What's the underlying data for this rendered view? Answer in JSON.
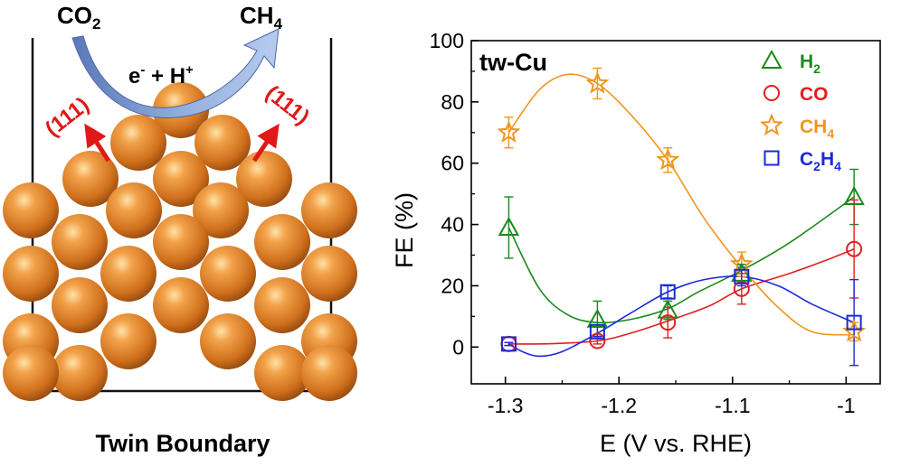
{
  "schematic": {
    "title": "Twin Boundary",
    "reactant": "CO2",
    "product": "CH4",
    "reagents": "e- + H+",
    "facet_left": "(111)",
    "facet_right": "(111)"
  },
  "chart_data": {
    "type": "scatter",
    "title": "tw-Cu",
    "xlabel": "E (V vs. RHE)",
    "ylabel": "FE (%)",
    "xlim": [
      -1.33,
      -0.97
    ],
    "ylim": [
      -12,
      100
    ],
    "xticks": [
      -1.3,
      -1.2,
      -1.1,
      -1.0
    ],
    "xtick_labels": [
      "-1.3",
      "-1.2",
      "-1.1",
      "-1"
    ],
    "yticks": [
      0,
      20,
      40,
      60,
      80,
      100
    ],
    "ytick_labels": [
      "0",
      "20",
      "40",
      "60",
      "80",
      "100"
    ],
    "grid": false,
    "legend_position": "top-right",
    "x": [
      -1.297,
      -1.219,
      -1.157,
      -1.092,
      -0.993
    ],
    "series": [
      {
        "name": "H2",
        "marker": "triangle",
        "color": "#1a8a1a",
        "values": [
          39,
          9,
          12,
          24,
          49
        ],
        "errors": [
          10,
          6,
          3,
          3,
          9
        ],
        "curve": [
          [
            -1.297,
            39
          ],
          [
            -1.27,
            19
          ],
          [
            -1.245,
            10.5
          ],
          [
            -1.219,
            8
          ],
          [
            -1.19,
            9
          ],
          [
            -1.157,
            12.5
          ],
          [
            -1.13,
            18
          ],
          [
            -1.092,
            25
          ],
          [
            -1.05,
            34
          ],
          [
            -0.993,
            49
          ]
        ]
      },
      {
        "name": "CO",
        "marker": "circle",
        "color": "#e02020",
        "values": [
          1,
          2,
          8,
          19,
          32
        ],
        "errors": [
          0.5,
          1,
          5,
          5,
          16
        ],
        "curve": [
          [
            -1.297,
            1
          ],
          [
            -1.26,
            1.1
          ],
          [
            -1.219,
            2
          ],
          [
            -1.19,
            4.5
          ],
          [
            -1.157,
            8.5
          ],
          [
            -1.12,
            13.5
          ],
          [
            -1.092,
            19
          ],
          [
            -1.05,
            24
          ],
          [
            -1.02,
            28
          ],
          [
            -0.993,
            32
          ]
        ]
      },
      {
        "name": "CH4",
        "marker": "star",
        "color": "#f0961e",
        "values": [
          70,
          86,
          61,
          27,
          5
        ],
        "errors": [
          5,
          5,
          4,
          4,
          3
        ],
        "curve": [
          [
            -1.297,
            70
          ],
          [
            -1.27,
            84
          ],
          [
            -1.245,
            89
          ],
          [
            -1.219,
            86
          ],
          [
            -1.19,
            76
          ],
          [
            -1.157,
            61
          ],
          [
            -1.125,
            42
          ],
          [
            -1.092,
            26
          ],
          [
            -1.06,
            13
          ],
          [
            -1.03,
            5
          ],
          [
            -0.993,
            4
          ]
        ]
      },
      {
        "name": "C2H4",
        "marker": "square",
        "color": "#1a2ad8",
        "values": [
          1,
          5,
          18,
          23,
          8
        ],
        "errors": [
          0.5,
          1.5,
          2,
          3,
          14
        ],
        "curve": [
          [
            -1.297,
            1
          ],
          [
            -1.285,
            -1.5
          ],
          [
            -1.27,
            -3
          ],
          [
            -1.25,
            -1.5
          ],
          [
            -1.219,
            4.5
          ],
          [
            -1.19,
            11
          ],
          [
            -1.157,
            18
          ],
          [
            -1.125,
            22
          ],
          [
            -1.092,
            23
          ],
          [
            -1.06,
            20
          ],
          [
            -1.03,
            14
          ],
          [
            -0.993,
            8
          ]
        ]
      }
    ],
    "legend": [
      {
        "label": "H2",
        "base": "H",
        "sub": "2",
        "color": "#1a8a1a",
        "marker": "triangle"
      },
      {
        "label": "CO",
        "base": "CO",
        "sub": "",
        "color": "#e02020",
        "marker": "circle"
      },
      {
        "label": "CH4",
        "base": "CH",
        "sub": "4",
        "color": "#f0961e",
        "marker": "star"
      },
      {
        "label": "C2H4",
        "base": "C",
        "sub": "2",
        "tail": "H",
        "sub2": "4",
        "color": "#1a2ad8",
        "marker": "square"
      }
    ]
  }
}
